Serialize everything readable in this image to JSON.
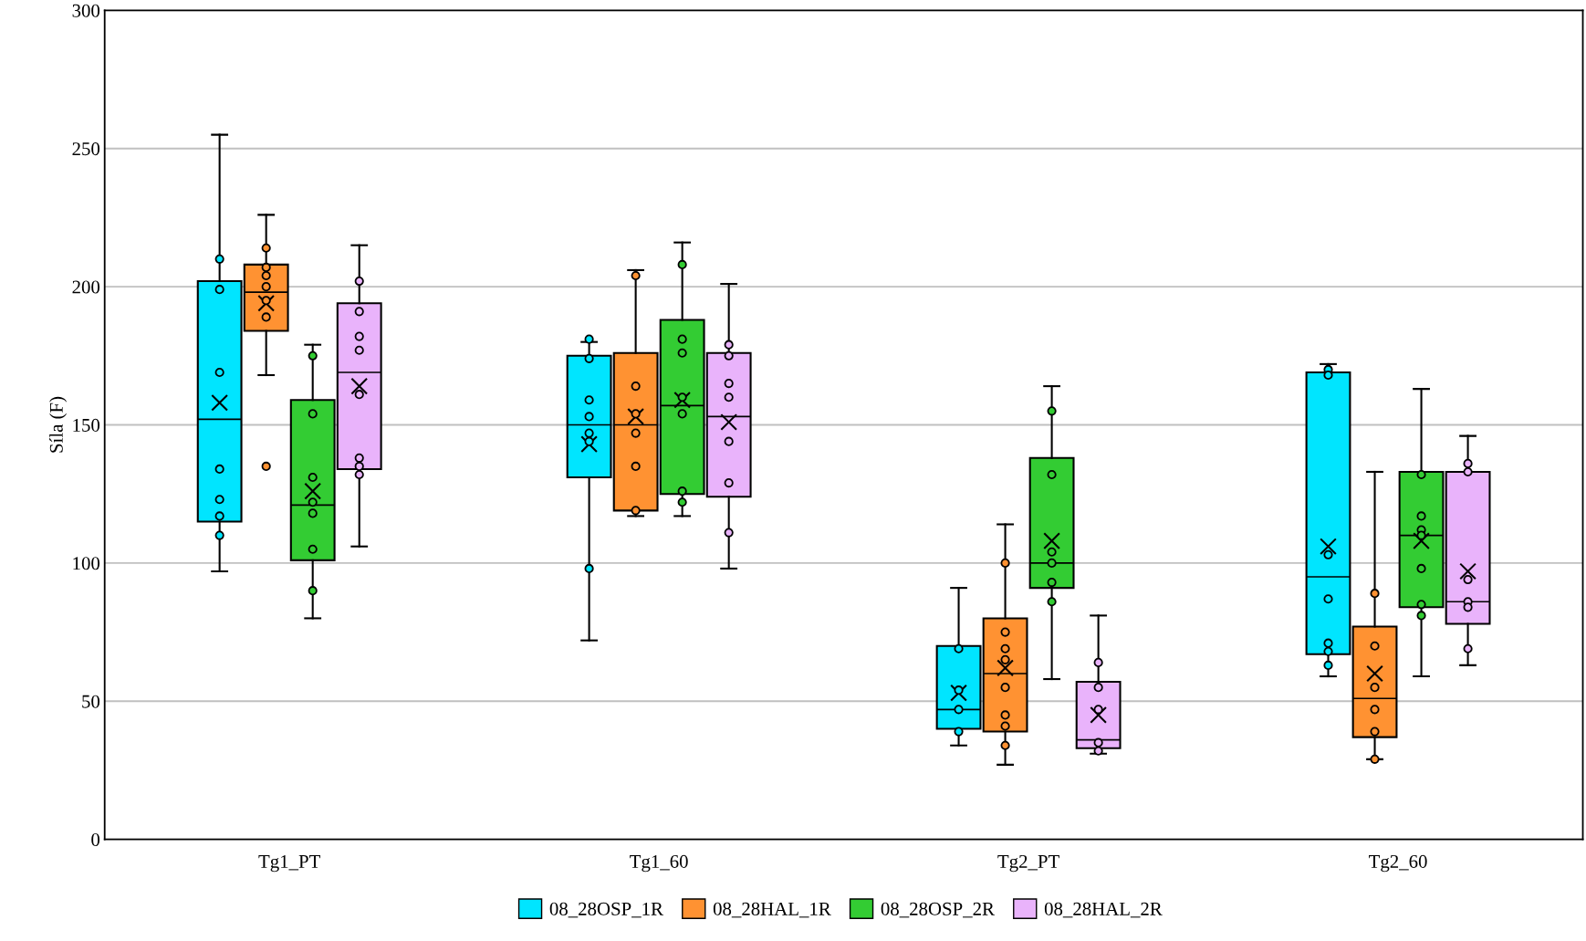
{
  "chart_data": {
    "type": "box",
    "ylabel": "Síla (F)",
    "categories": [
      "Tg1_PT",
      "Tg1_60",
      "Tg2_PT",
      "Tg2_60"
    ],
    "ylim": [
      0,
      300
    ],
    "yticks": [
      0,
      50,
      100,
      150,
      200,
      250,
      300
    ],
    "grid": "y",
    "legend": "bottom",
    "series": [
      {
        "name": "08_28OSP_1R",
        "color": "#00e5ff",
        "boxes": [
          {
            "low": 97,
            "q1": 115,
            "median": 152,
            "q3": 202,
            "high": 255,
            "mean": 158,
            "outliers": [
              210,
              199,
              169,
              134,
              123,
              117,
              110
            ]
          },
          {
            "low": 72,
            "q1": 131,
            "median": 150,
            "q3": 175,
            "high": 180,
            "mean": 143,
            "outliers": [
              181,
              174,
              159,
              153,
              147,
              144,
              98
            ]
          },
          {
            "low": 34,
            "q1": 40,
            "median": 47,
            "q3": 70,
            "high": 91,
            "mean": 53,
            "outliers": [
              69,
              54,
              47,
              39
            ]
          },
          {
            "low": 59,
            "q1": 67,
            "median": 95,
            "q3": 169,
            "high": 172,
            "mean": 106,
            "outliers": [
              170,
              168,
              103,
              87,
              71,
              68,
              63
            ]
          }
        ]
      },
      {
        "name": "08_28HAL_1R",
        "color": "#ff9232",
        "boxes": [
          {
            "low": 168,
            "q1": 184,
            "median": 198,
            "q3": 208,
            "high": 226,
            "mean": 194,
            "outliers": [
              214,
              207,
              204,
              200,
              195,
              189,
              135
            ]
          },
          {
            "low": 117,
            "q1": 119,
            "median": 150,
            "q3": 176,
            "high": 206,
            "mean": 153,
            "outliers": [
              204,
              164,
              154,
              147,
              135,
              119
            ]
          },
          {
            "low": 27,
            "q1": 39,
            "median": 60,
            "q3": 80,
            "high": 114,
            "mean": 62,
            "outliers": [
              100,
              75,
              69,
              65,
              55,
              45,
              41,
              34
            ]
          },
          {
            "low": 29,
            "q1": 37,
            "median": 51,
            "q3": 77,
            "high": 133,
            "mean": 60,
            "outliers": [
              89,
              70,
              55,
              47,
              39,
              29
            ]
          }
        ]
      },
      {
        "name": "08_28OSP_2R",
        "color": "#33cc33",
        "boxes": [
          {
            "low": 80,
            "q1": 101,
            "median": 121,
            "q3": 159,
            "high": 179,
            "mean": 126,
            "outliers": [
              175,
              154,
              131,
              122,
              118,
              105,
              90
            ]
          },
          {
            "low": 117,
            "q1": 125,
            "median": 157,
            "q3": 188,
            "high": 216,
            "mean": 159,
            "outliers": [
              208,
              181,
              176,
              160,
              154,
              126,
              122
            ]
          },
          {
            "low": 58,
            "q1": 91,
            "median": 100,
            "q3": 138,
            "high": 164,
            "mean": 108,
            "outliers": [
              155,
              132,
              104,
              100,
              93,
              86
            ]
          },
          {
            "low": 59,
            "q1": 84,
            "median": 110,
            "q3": 133,
            "high": 163,
            "mean": 108,
            "outliers": [
              132,
              117,
              112,
              110,
              98,
              85,
              81
            ]
          }
        ]
      },
      {
        "name": "08_28HAL_2R",
        "color": "#e9b3fb",
        "boxes": [
          {
            "low": 106,
            "q1": 134,
            "median": 169,
            "q3": 194,
            "high": 215,
            "mean": 164,
            "outliers": [
              202,
              191,
              182,
              177,
              161,
              138,
              135,
              132
            ]
          },
          {
            "low": 98,
            "q1": 124,
            "median": 153,
            "q3": 176,
            "high": 201,
            "mean": 151,
            "outliers": [
              179,
              175,
              165,
              160,
              144,
              129,
              111
            ]
          },
          {
            "low": 31,
            "q1": 33,
            "median": 36,
            "q3": 57,
            "high": 81,
            "mean": 45,
            "outliers": [
              64,
              55,
              47,
              35,
              32
            ]
          },
          {
            "low": 63,
            "q1": 78,
            "median": 86,
            "q3": 133,
            "high": 146,
            "mean": 97,
            "outliers": [
              136,
              133,
              94,
              86,
              84,
              69
            ]
          }
        ]
      }
    ]
  }
}
